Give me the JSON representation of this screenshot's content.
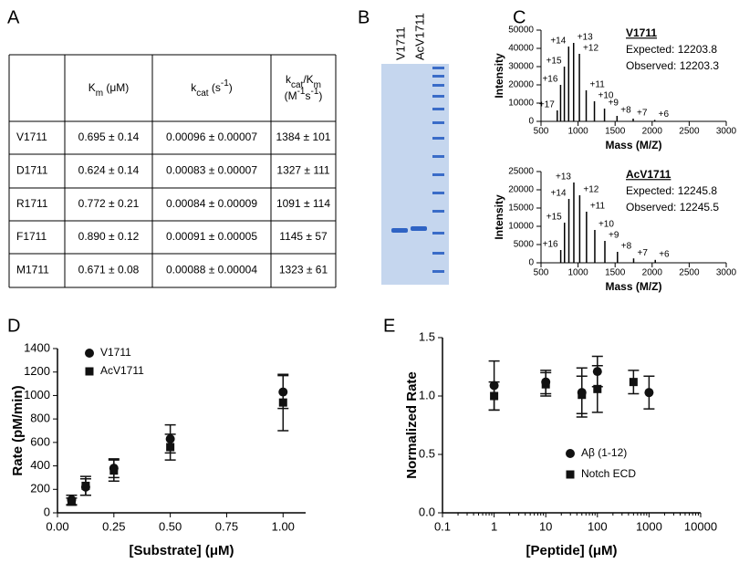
{
  "panel_labels": [
    "A",
    "B",
    "C",
    "D",
    "E"
  ],
  "table": {
    "header": [
      [
        [
          {
            "text": "K"
          },
          {
            "text": "m",
            "sub": true
          },
          {
            "text": " (μM)"
          }
        ]
      ],
      [
        [
          {
            "text": "k"
          },
          {
            "text": "cat",
            "sub": true
          },
          {
            "text": " (s"
          },
          {
            "text": "-1",
            "sup": true
          },
          {
            "text": ")"
          }
        ]
      ],
      [
        [
          {
            "text": "k"
          },
          {
            "text": "cat",
            "sub": true
          },
          {
            "text": "/K"
          },
          {
            "text": "m",
            "sub": true
          }
        ],
        [
          {
            "text": "(M"
          },
          {
            "text": "-1",
            "sup": true
          },
          {
            "text": "s"
          },
          {
            "text": "-1",
            "sup": true
          },
          {
            "text": ")"
          }
        ]
      ]
    ],
    "rows": [
      [
        "V1711",
        "0.695 ± 0.14",
        "0.00096 ± 0.00007",
        "1384 ± 101"
      ],
      [
        "D1711",
        "0.624 ± 0.14",
        "0.00083 ± 0.00007",
        "1327 ± 111"
      ],
      [
        "R1711",
        "0.772 ± 0.21",
        "0.00084 ± 0.00009",
        "1091 ± 114"
      ],
      [
        "F1711",
        "0.890 ± 0.12",
        "0.00091 ± 0.00005",
        "1145 ± 57"
      ],
      [
        "M1711",
        "0.671 ± 0.08",
        "0.00088 ± 0.00004",
        "1323 ± 61"
      ]
    ]
  },
  "gel": {
    "lanes": [
      "V1711",
      "AcV1711"
    ]
  },
  "chart_data": [
    {
      "type": "stem",
      "xlabel": "Mass (M/Z)",
      "ylabel": "Intensity",
      "annotations": [
        "V1711",
        "Expected: 12203.8",
        "Observed: 12203.3"
      ],
      "xlim": [
        500,
        3000
      ],
      "xticks": [
        500,
        1000,
        1500,
        2000,
        2500,
        3000
      ],
      "ylim": [
        0,
        50000
      ],
      "yticks": [
        0,
        10000,
        20000,
        30000,
        40000,
        50000
      ],
      "color": "#000000",
      "x": [
        719,
        764,
        815,
        873,
        940,
        1018,
        1110,
        1221,
        1357,
        1526,
        1744,
        2035
      ],
      "values": [
        6000,
        20000,
        30000,
        41000,
        43000,
        37000,
        17000,
        11000,
        7000,
        3000,
        1500,
        800
      ],
      "peak_labels": [
        "+17",
        "+16",
        "+15",
        "+14",
        "+13",
        "+12",
        "+11",
        "+10",
        "+9",
        "+8",
        "+7",
        "+6"
      ]
    },
    {
      "type": "stem",
      "xlabel": "Mass (M/Z)",
      "ylabel": "Intensity",
      "annotations": [
        "AcV1711",
        "Expected: 12245.8",
        "Observed: 12245.5"
      ],
      "xlim": [
        500,
        3000
      ],
      "xticks": [
        500,
        1000,
        1500,
        2000,
        2500,
        3000
      ],
      "ylim": [
        0,
        25000
      ],
      "yticks": [
        0,
        5000,
        10000,
        15000,
        20000,
        25000
      ],
      "color": "#000000",
      "x": [
        766,
        817,
        876,
        943,
        1022,
        1114,
        1226,
        1362,
        1532,
        1750,
        2042
      ],
      "values": [
        3500,
        11000,
        17500,
        22000,
        18500,
        14000,
        9000,
        6000,
        3000,
        1200,
        800
      ],
      "peak_labels": [
        "+16",
        "+15",
        "+14",
        "+13",
        "+12",
        "+11",
        "+10",
        "+9",
        "+8",
        "+7",
        "+6"
      ]
    },
    {
      "type": "scatter",
      "xlabel": "[Substrate] (μM)",
      "ylabel": "Rate (pM/min)",
      "xlim": [
        0,
        1.1
      ],
      "xticks": [
        {
          "value": 0,
          "label": "0.00"
        },
        {
          "value": 0.25,
          "label": "0.25"
        },
        {
          "value": 0.5,
          "label": "0.50"
        },
        {
          "value": 0.75,
          "label": "0.75"
        },
        {
          "value": 1,
          "label": "1.00"
        }
      ],
      "ylim": [
        0,
        1400
      ],
      "yticks": [
        0,
        200,
        400,
        600,
        800,
        1000,
        1200,
        1400
      ],
      "legend": "upper left",
      "series": [
        {
          "name": "V1711",
          "marker": "circle",
          "color": "#111111",
          "x": [
            0.0625,
            0.125,
            0.25,
            0.5,
            1
          ],
          "values": [
            110,
            220,
            380,
            630,
            1030
          ],
          "errors": [
            40,
            70,
            80,
            120,
            140
          ]
        },
        {
          "name": "AcV1711",
          "marker": "square",
          "color": "#111111",
          "x": [
            0.0625,
            0.125,
            0.25,
            0.5,
            1
          ],
          "values": [
            95,
            230,
            360,
            560,
            940
          ],
          "errors": [
            30,
            80,
            90,
            110,
            240
          ]
        }
      ]
    },
    {
      "type": "scatter",
      "xlabel": "[Peptide] (μM)",
      "ylabel": "Normalized Rate",
      "log_x": true,
      "xlim": [
        0.1,
        10000
      ],
      "xticks": [
        0.1,
        1,
        10,
        100,
        1000,
        10000
      ],
      "ylim": [
        0,
        1.5
      ],
      "yticks": [
        {
          "value": 0,
          "label": "0.0"
        },
        {
          "value": 0.5,
          "label": "0.5"
        },
        {
          "value": 1,
          "label": "1.0"
        },
        {
          "value": 1.5,
          "label": "1.5"
        }
      ],
      "legend": "lower right",
      "series": [
        {
          "name": "Aβ (1-12)",
          "marker": "circle",
          "color": "#111111",
          "x": [
            1,
            10,
            50,
            100,
            1000
          ],
          "values": [
            1.09,
            1.12,
            1.03,
            1.21,
            1.03
          ],
          "errors": [
            0.21,
            0.1,
            0.21,
            0.13,
            0.14
          ]
        },
        {
          "name": "Notch ECD",
          "marker": "square",
          "color": "#111111",
          "x": [
            1,
            10,
            50,
            100,
            500
          ],
          "values": [
            1.0,
            1.1,
            1.01,
            1.06,
            1.12
          ],
          "errors": [
            0.12,
            0.1,
            0.16,
            0.2,
            0.1
          ]
        }
      ]
    }
  ]
}
